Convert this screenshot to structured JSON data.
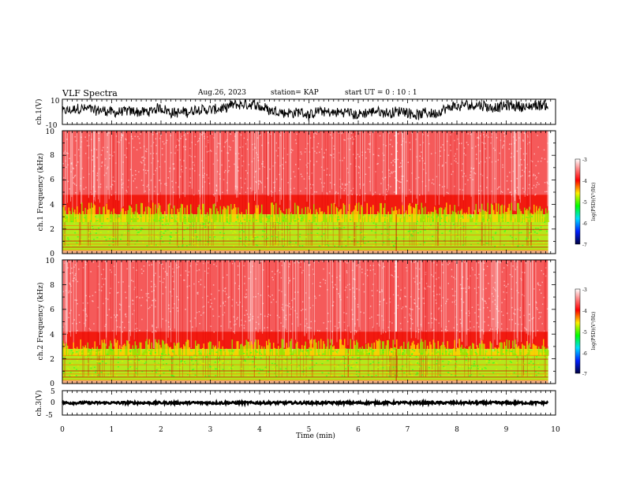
{
  "header": {
    "title": "VLF Spectra",
    "date": "Aug.26, 2023",
    "station": "station= KAP",
    "start": "start  UT =   0  : 10 : 1"
  },
  "chart_data": [
    {
      "type": "line",
      "panel": "ch1-waveform",
      "ylabel": "ch.1(V)",
      "ylim": [
        -10,
        10
      ],
      "yticks": [
        "10",
        "-10"
      ],
      "xlim": [
        0,
        10
      ],
      "data_end_min": 9.85,
      "series": [
        {
          "description_level": [
            -2,
            8
          ],
          "color": "#000000"
        }
      ]
    },
    {
      "type": "heatmap",
      "panel": "ch1-spectrogram",
      "ylabel": "ch.1  Frequency  (kHz)",
      "ylim": [
        0,
        10
      ],
      "yticks": [
        "0",
        "2",
        "4",
        "6",
        "8",
        "10"
      ],
      "xlim": [
        0,
        10
      ],
      "data_end_min": 9.85,
      "colorbar": {
        "label": "log(PSD)(V²/Hz)",
        "range": [
          -7,
          -3
        ],
        "ticks": [
          "-3",
          "-4",
          "-5",
          "-6",
          "-7"
        ]
      },
      "bands_khz": {
        "green_top": 3.2,
        "orange_top": 4.8,
        "red_top": 10
      },
      "notable_event_min": 6.77
    },
    {
      "type": "heatmap",
      "panel": "ch2-spectrogram",
      "ylabel": "ch.2  Frequency  (kHz)",
      "ylim": [
        0,
        10
      ],
      "yticks": [
        "0",
        "2",
        "4",
        "6",
        "8",
        "10"
      ],
      "xlim": [
        0,
        10
      ],
      "data_end_min": 9.85,
      "colorbar": {
        "label": "log(PSD)(V²/Hz)",
        "range": [
          -7,
          -3
        ],
        "ticks": [
          "-3",
          "-4",
          "-5",
          "-6",
          "-7"
        ]
      },
      "bands_khz": {
        "green_top": 2.8,
        "orange_top": 4.2,
        "red_top": 10
      },
      "notable_event_min": 6.77
    },
    {
      "type": "line",
      "panel": "ch3-waveform",
      "ylabel": "ch.3(V)",
      "ylim": [
        -5,
        5
      ],
      "yticks": [
        "5",
        "0",
        "-5"
      ],
      "xlim": [
        0,
        10
      ],
      "data_end_min": 9.85,
      "series": [
        {
          "level_v": 0,
          "spread_v": 0.5,
          "color": "#000000"
        }
      ]
    }
  ],
  "xaxis": {
    "xlabel": "Time  (min)",
    "ticks": [
      "0",
      "1",
      "2",
      "3",
      "4",
      "5",
      "6",
      "7",
      "8",
      "9",
      "10"
    ]
  }
}
